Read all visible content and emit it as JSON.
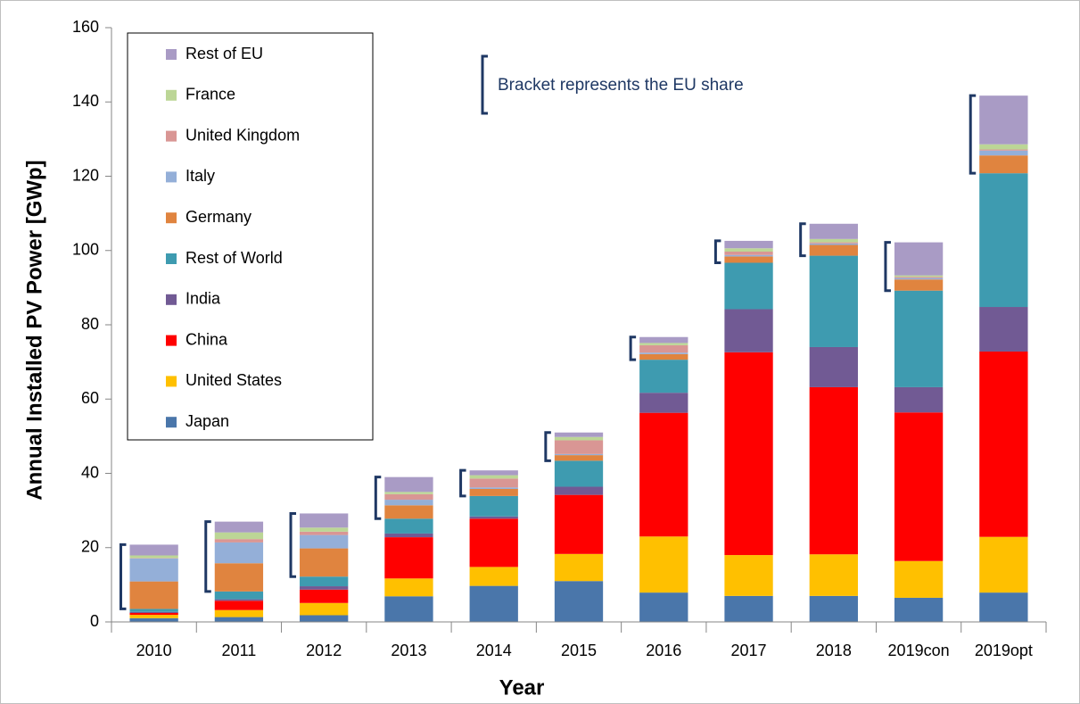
{
  "chart_data": {
    "type": "stacked_bar",
    "ylabel": "Annual Installed PV Power [GWp]",
    "xlabel": "Year",
    "annotation": "Bracket represents the EU share",
    "categories": [
      "2010",
      "2011",
      "2012",
      "2013",
      "2014",
      "2015",
      "2016",
      "2017",
      "2018",
      "2019con",
      "2019opt"
    ],
    "series": [
      {
        "name": "Japan",
        "color": "#4a76aa",
        "values": [
          1.0,
          1.3,
          1.8,
          6.9,
          9.7,
          11.0,
          7.9,
          7.0,
          7.0,
          6.5,
          7.9
        ]
      },
      {
        "name": "United States",
        "color": "#ffc000",
        "values": [
          0.9,
          1.9,
          3.3,
          4.8,
          5.1,
          7.3,
          15.1,
          11.0,
          11.2,
          9.9,
          15.0
        ]
      },
      {
        "name": "China",
        "color": "#ff0000",
        "values": [
          0.5,
          2.5,
          3.6,
          11.1,
          13.0,
          15.9,
          33.3,
          54.6,
          45.0,
          40.0,
          49.9
        ]
      },
      {
        "name": "India",
        "color": "#715a94",
        "values": [
          0.3,
          0.4,
          0.9,
          1.0,
          0.6,
          2.2,
          5.4,
          11.6,
          10.8,
          6.8,
          12.0
        ]
      },
      {
        "name": "Rest of World",
        "color": "#3e9bb0",
        "values": [
          0.8,
          2.1,
          2.6,
          4.0,
          5.5,
          7.0,
          8.9,
          12.5,
          24.6,
          26.0,
          36.0
        ]
      },
      {
        "name": "Germany",
        "color": "#e0843f",
        "values": [
          7.4,
          7.6,
          7.6,
          3.6,
          1.9,
          1.5,
          1.5,
          1.7,
          2.9,
          3.0,
          4.8
        ]
      },
      {
        "name": "Italy",
        "color": "#94afd8",
        "values": [
          6.2,
          5.6,
          3.6,
          1.5,
          0.4,
          0.3,
          0.4,
          0.4,
          0.4,
          0.4,
          1.3
        ]
      },
      {
        "name": "United Kingdom",
        "color": "#d99694",
        "values": [
          0.1,
          0.9,
          0.9,
          1.5,
          2.4,
          3.7,
          2.0,
          0.9,
          0.3,
          0.3,
          0.3
        ]
      },
      {
        "name": "France",
        "color": "#bcd696",
        "values": [
          0.7,
          1.8,
          1.1,
          0.6,
          0.9,
          0.9,
          0.6,
          0.9,
          0.9,
          0.4,
          1.4
        ]
      },
      {
        "name": "Rest of EU",
        "color": "#a99bc5",
        "values": [
          2.9,
          2.9,
          3.8,
          4.0,
          1.3,
          1.2,
          1.6,
          2.0,
          4.1,
          8.9,
          13.1
        ]
      }
    ],
    "eu_series": [
      "Germany",
      "Italy",
      "United Kingdom",
      "France",
      "Rest of EU"
    ],
    "ylim": [
      0,
      160
    ],
    "yticks": [
      0,
      20,
      40,
      60,
      80,
      100,
      120,
      140,
      160
    ]
  }
}
